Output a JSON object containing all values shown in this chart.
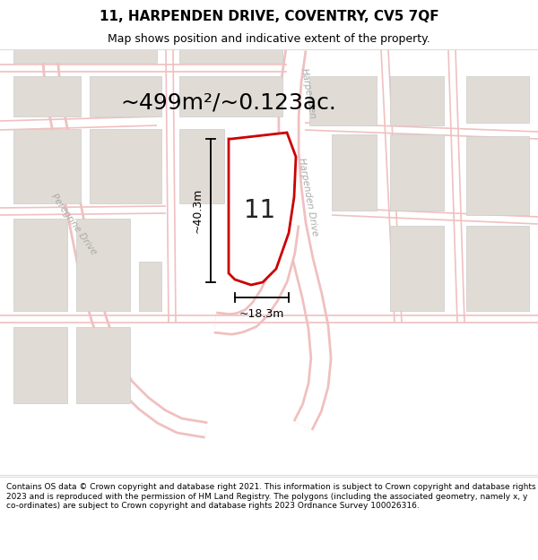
{
  "title": "11, HARPENDEN DRIVE, COVENTRY, CV5 7QF",
  "subtitle": "Map shows position and indicative extent of the property.",
  "area_label": "~499m²/~0.123ac.",
  "property_number": "11",
  "dim_width": "~18.3m",
  "dim_height": "~40.3m",
  "footer": "Contains OS data © Crown copyright and database right 2021. This information is subject to Crown copyright and database rights 2023 and is reproduced with the permission of HM Land Registry. The polygons (including the associated geometry, namely x, y co-ordinates) are subject to Crown copyright and database rights 2023 Ordnance Survey 100026316.",
  "map_bg": "#f7f6f4",
  "road_line_color": "#f0c0c0",
  "road_fill_color": "#ffffff",
  "building_color": "#e0dbd5",
  "building_edge": "#cccccc",
  "property_stroke": "#cc0000",
  "property_fill": "#ffffff",
  "dim_line_color": "#000000",
  "label_color": "#000000",
  "road_label_color": "#aaaaaa",
  "header_bg": "#ffffff",
  "footer_bg": "#ffffff",
  "sep_line_color": "#dddddd",
  "title_fontsize": 11,
  "subtitle_fontsize": 9,
  "area_fontsize": 18,
  "property_num_fontsize": 20,
  "dim_fontsize": 9,
  "road_label_fontsize": 7.5,
  "footer_fontsize": 6.5
}
